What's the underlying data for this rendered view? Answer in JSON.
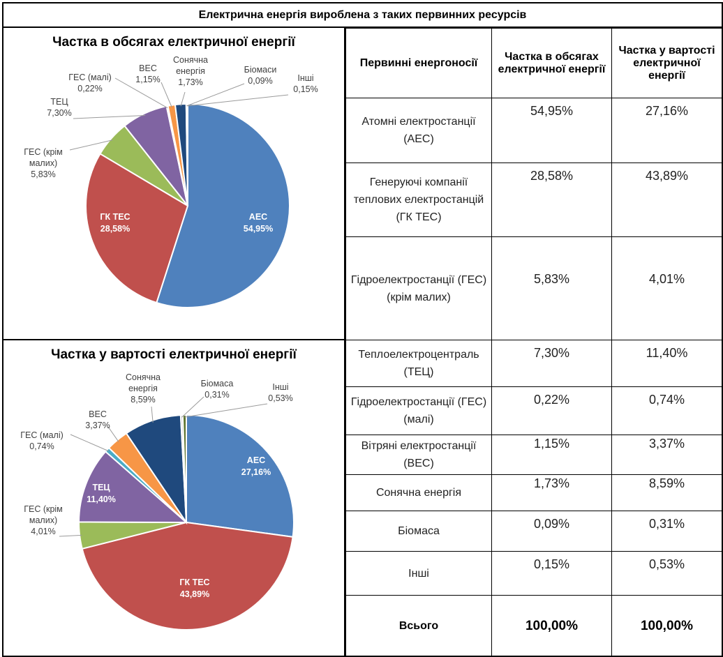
{
  "header": {
    "title": "Електрична енергія вироблена з таких первинних ресурсів"
  },
  "colors": {
    "aes": "#4F81BD",
    "gktes": "#C0504D",
    "ges_big": "#9BBB59",
    "tets": "#8064A2",
    "ges_small": "#4BACC6",
    "ves": "#F79646",
    "solar": "#1F497D",
    "biomass": "#C9C9C9",
    "other": "#5F7530"
  },
  "chart_data": [
    {
      "type": "pie",
      "title": "Частка в обсягах електричної енергії",
      "start": "12 o'clock, clockwise",
      "slices": [
        {
          "key": "aes",
          "label": "АЕС",
          "value": 54.95,
          "text": "54,95%",
          "label_position": "inside"
        },
        {
          "key": "gktes",
          "label": "ГК ТЕС",
          "value": 28.58,
          "text": "28,58%",
          "label_position": "inside"
        },
        {
          "key": "ges_big",
          "label": "ГЕС (крім малих)",
          "value": 5.83,
          "text": "5,83%",
          "label_position": "outside"
        },
        {
          "key": "tets",
          "label": "ТЕЦ",
          "value": 7.3,
          "text": "7,30%",
          "label_position": "outside"
        },
        {
          "key": "ges_small",
          "label": "ГЕС (малі)",
          "value": 0.22,
          "text": "0,22%",
          "label_position": "outside"
        },
        {
          "key": "ves",
          "label": "ВЕС",
          "value": 1.15,
          "text": "1,15%",
          "label_position": "outside"
        },
        {
          "key": "solar",
          "label": "Сонячна енергія",
          "value": 1.73,
          "text": "1,73%",
          "label_position": "outside"
        },
        {
          "key": "biomass",
          "label": "Біомаси",
          "value": 0.09,
          "text": "0,09%",
          "label_position": "outside"
        },
        {
          "key": "other",
          "label": "Інші",
          "value": 0.15,
          "text": "0,15%",
          "label_position": "outside"
        }
      ]
    },
    {
      "type": "pie",
      "title": "Частка у вартості електричної енергії",
      "start": "12 o'clock, clockwise",
      "slices": [
        {
          "key": "aes",
          "label": "АЕС",
          "value": 27.16,
          "text": "27,16%",
          "label_position": "inside"
        },
        {
          "key": "gktes",
          "label": "ГК ТЕС",
          "value": 43.89,
          "text": "43,89%",
          "label_position": "inside"
        },
        {
          "key": "ges_big",
          "label": "ГЕС (крім малих)",
          "value": 4.01,
          "text": "4,01%",
          "label_position": "outside"
        },
        {
          "key": "tets",
          "label": "ТЕЦ",
          "value": 11.4,
          "text": "11,40%",
          "label_position": "inside"
        },
        {
          "key": "ges_small",
          "label": "ГЕС (малі)",
          "value": 0.74,
          "text": "0,74%",
          "label_position": "outside"
        },
        {
          "key": "ves",
          "label": "ВЕС",
          "value": 3.37,
          "text": "3,37%",
          "label_position": "outside"
        },
        {
          "key": "solar",
          "label": "Сонячна енергія",
          "value": 8.59,
          "text": "8,59%",
          "label_position": "outside"
        },
        {
          "key": "biomass",
          "label": "Біомаса",
          "value": 0.31,
          "text": "0,31%",
          "label_position": "outside"
        },
        {
          "key": "other",
          "label": "Інші",
          "value": 0.53,
          "text": "0,53%",
          "label_position": "outside"
        }
      ]
    }
  ],
  "table": {
    "headers": [
      "Первинні енергоносії",
      "Частка в обсягах електричної енергії",
      "Частка у вартості електричної енергії"
    ],
    "rows": [
      {
        "name": "Атомні електростанції (АЕС)",
        "volume": "54,95%",
        "cost": "27,16%"
      },
      {
        "name": "Генеруючі компанії теплових електростанцій (ГК ТЕС)",
        "volume": "28,58%",
        "cost": "43,89%"
      },
      {
        "name": "Гідроелектростанції (ГЕС) (крім малих)",
        "volume": "5,83%",
        "cost": "4,01%"
      },
      {
        "name": "Теплоелектроцентраль (ТЕЦ)",
        "volume": "7,30%",
        "cost": "11,40%"
      },
      {
        "name": "Гідроелектростанції (ГЕС) (малі)",
        "volume": "0,22%",
        "cost": "0,74%"
      },
      {
        "name": "Вітряні електростанції (ВЕС)",
        "volume": "1,15%",
        "cost": "3,37%"
      },
      {
        "name": "Сонячна енергія",
        "volume": "1,73%",
        "cost": "8,59%"
      },
      {
        "name": "Біомаса",
        "volume": "0,09%",
        "cost": "0,31%"
      },
      {
        "name": "Інші",
        "volume": "0,15%",
        "cost": "0,53%"
      }
    ],
    "total": {
      "name": "Всього",
      "volume": "100,00%",
      "cost": "100,00%"
    }
  }
}
